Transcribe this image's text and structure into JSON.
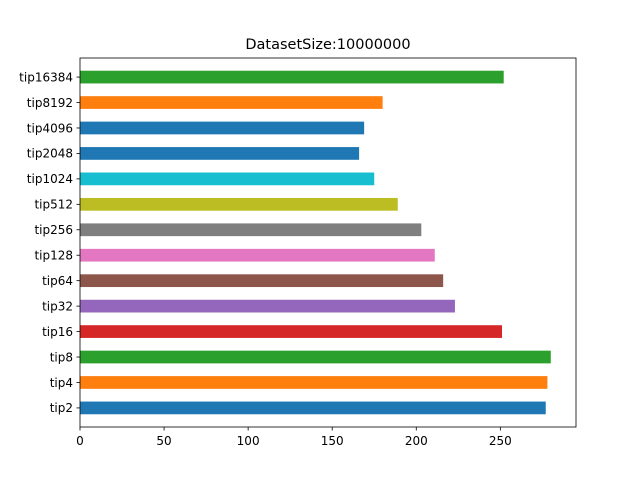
{
  "chart_data": {
    "type": "bar",
    "orientation": "horizontal",
    "title": "DatasetSize:10000000",
    "xlabel": "",
    "ylabel": "",
    "xlim": [
      0,
      295
    ],
    "xticks": [
      0,
      50,
      100,
      150,
      200,
      250
    ],
    "grid": false,
    "legend": "none",
    "categories": [
      "tip2",
      "tip4",
      "tip8",
      "tip16",
      "tip32",
      "tip64",
      "tip128",
      "tip256",
      "tip512",
      "tip1024",
      "tip2048",
      "tip4096",
      "tip8192",
      "tip16384"
    ],
    "values": [
      277,
      278,
      280,
      251,
      223,
      216,
      211,
      203,
      189,
      175,
      166,
      169,
      180,
      252
    ],
    "colors": [
      "#1f77b4",
      "#ff7f0e",
      "#2ca02c",
      "#d62728",
      "#9467bd",
      "#8c564b",
      "#e377c2",
      "#7f7f7f",
      "#bcbd22",
      "#17becf",
      "#1f77b4",
      "#1f77b4",
      "#ff7f0e",
      "#2ca02c"
    ]
  }
}
